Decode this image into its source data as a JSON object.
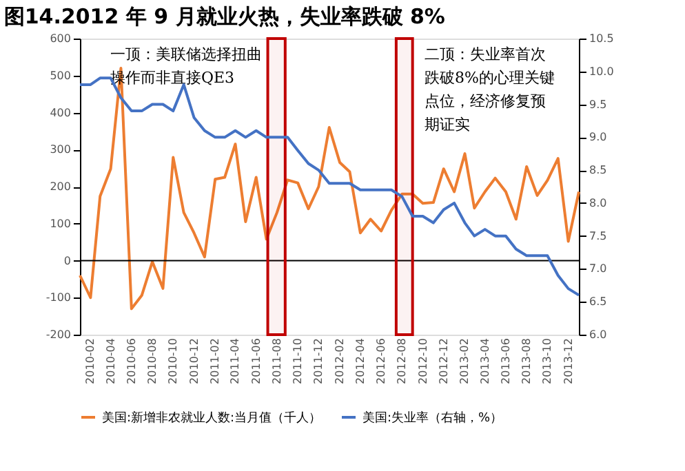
{
  "chart_data": {
    "type": "line",
    "title": "图14.2012 年 9 月就业火热，失业率跌破 8%",
    "x": [
      "2010-01",
      "2010-02",
      "2010-03",
      "2010-04",
      "2010-05",
      "2010-06",
      "2010-07",
      "2010-08",
      "2010-09",
      "2010-10",
      "2010-11",
      "2010-12",
      "2011-01",
      "2011-02",
      "2011-03",
      "2011-04",
      "2011-05",
      "2011-06",
      "2011-07",
      "2011-08",
      "2011-09",
      "2011-10",
      "2011-11",
      "2011-12",
      "2012-01",
      "2012-02",
      "2012-03",
      "2012-04",
      "2012-05",
      "2012-06",
      "2012-07",
      "2012-08",
      "2012-09",
      "2012-10",
      "2012-11",
      "2012-12",
      "2013-01",
      "2013-02",
      "2013-03",
      "2013-04",
      "2013-05",
      "2013-06",
      "2013-07",
      "2013-08",
      "2013-09",
      "2013-10",
      "2013-11",
      "2013-12",
      "2014-01"
    ],
    "series": [
      {
        "name": "美国:新增非农就业人数:当月值（千人）",
        "color": "#ed7d31",
        "values": [
          -40,
          -100,
          174,
          248,
          520,
          -130,
          -94,
          -3,
          -75,
          279,
          130,
          75,
          10,
          220,
          225,
          315,
          105,
          225,
          58,
          130,
          218,
          210,
          140,
          200,
          360,
          265,
          240,
          75,
          112,
          80,
          136,
          180,
          180,
          155,
          157,
          248,
          186,
          289,
          142,
          186,
          223,
          186,
          112,
          254,
          176,
          217,
          276,
          52,
          186
        ]
      },
      {
        "name": "美国:失业率（右轴，%）",
        "color": "#4472c4",
        "axis": "y2",
        "values": [
          9.8,
          9.8,
          9.9,
          9.9,
          9.6,
          9.4,
          9.4,
          9.5,
          9.5,
          9.4,
          9.8,
          9.3,
          9.1,
          9.0,
          9.0,
          9.1,
          9.0,
          9.1,
          9.0,
          9.0,
          9.0,
          8.8,
          8.6,
          8.5,
          8.3,
          8.3,
          8.3,
          8.2,
          8.2,
          8.2,
          8.2,
          8.1,
          7.8,
          7.8,
          7.7,
          7.9,
          8.0,
          7.7,
          7.5,
          7.6,
          7.5,
          7.5,
          7.3,
          7.2,
          7.2,
          7.2,
          6.9,
          6.7,
          6.6
        ]
      }
    ],
    "xlim": [
      "2010-01",
      "2014-01"
    ],
    "xticks": [
      "2010-02",
      "2010-04",
      "2010-06",
      "2010-08",
      "2010-10",
      "2010-12",
      "2011-02",
      "2011-04",
      "2011-06",
      "2011-08",
      "2011-10",
      "2011-12",
      "2012-02",
      "2012-04",
      "2012-06",
      "2012-08",
      "2012-10",
      "2012-12",
      "2013-02",
      "2013-04",
      "2013-06",
      "2013-08",
      "2013-10",
      "2013-12"
    ],
    "ylim": [
      -200,
      600
    ],
    "yticks": [
      -200,
      -100,
      0,
      100,
      200,
      300,
      400,
      500,
      600
    ],
    "y2lim": [
      6.0,
      10.5
    ],
    "y2ticks": [
      {
        "value": 6,
        "label": "6.0"
      },
      {
        "value": 6.5,
        "label": "6.5"
      },
      {
        "value": 7,
        "label": "7.0"
      },
      {
        "value": 7.5,
        "label": "7.5"
      },
      {
        "value": 8,
        "label": "8.0"
      },
      {
        "value": 8.5,
        "label": "8.5"
      },
      {
        "value": 9,
        "label": "9.0"
      },
      {
        "value": 9.5,
        "label": "9.5"
      },
      {
        "value": 10,
        "label": "10.0"
      },
      {
        "value": 10.5,
        "label": "10.5"
      }
    ],
    "ref_lines": [
      {
        "axis": "y",
        "value": 0,
        "color": "#000000"
      }
    ],
    "bands": [
      {
        "axis": "x",
        "from": "2011-07-05",
        "to": "2011-08-25",
        "color": "#c00000"
      },
      {
        "axis": "x",
        "from": "2012-07-15",
        "to": "2012-09-01",
        "color": "#c00000"
      }
    ],
    "annotations": [
      "一顶：美联储选择扭曲操作而非直接QE3",
      "二顶：失业率首次跌破8%的心理关键点位，经济修复预期证实"
    ],
    "grid": false,
    "legend": "bottom",
    "marker": "none",
    "line_style": "solid"
  }
}
